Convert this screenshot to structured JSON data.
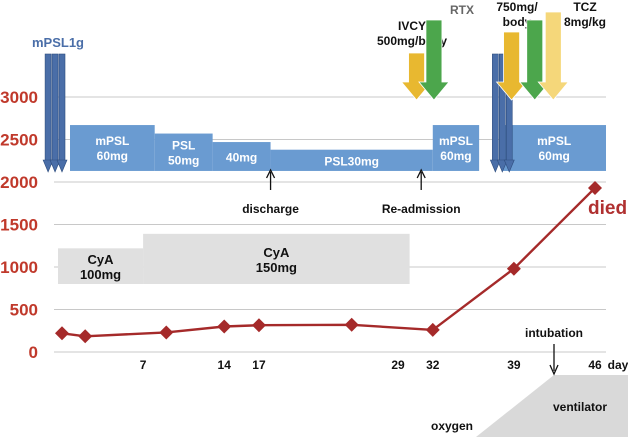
{
  "chart_data": {
    "type": "line",
    "y_axis": {
      "ticks": [
        "0",
        "500",
        "1000",
        "1500",
        "2000",
        "2500",
        "3000"
      ],
      "ylim": [
        0,
        3000
      ]
    },
    "x_axis": {
      "ticks": [
        "7",
        "14",
        "17",
        "29",
        "32",
        "39",
        "46"
      ],
      "unit": "day",
      "xlim": [
        0,
        48
      ]
    },
    "series": [
      {
        "x": [
          0,
          2,
          9,
          14,
          17,
          25,
          32,
          39,
          46
        ],
        "y": [
          220,
          185,
          230,
          300,
          315,
          320,
          260,
          980,
          1930
        ],
        "color": "#a52a2a"
      }
    ],
    "treatment_bars": [
      {
        "label": "mPSL\n60mg",
        "x0": 1,
        "x1": 8,
        "y_top": 2670
      },
      {
        "label": "PSL\n50mg",
        "x0": 8,
        "x1": 13,
        "y_top": 2570
      },
      {
        "label": "40mg",
        "x0": 13,
        "x1": 18,
        "y_top": 2470
      },
      {
        "label": "PSL30mg",
        "x0": 18,
        "x1": 32,
        "y_top": 2380
      },
      {
        "label": "mPSL\n60mg",
        "x0": 32,
        "x1": 36,
        "y_top": 2670
      },
      {
        "label": "mPSL\n60mg",
        "x0": 38,
        "x1": 47,
        "y_top": 2670
      }
    ],
    "cya_bars": [
      {
        "label": "CyA\n100mg",
        "x0": 0,
        "x1": 7,
        "y_bottom": 800,
        "y_top": 1220
      },
      {
        "label": "CyA\n150mg",
        "x0": 7,
        "x1": 30,
        "y_bottom": 800,
        "y_top": 1390
      }
    ],
    "pulse_arrows": {
      "label": "mPSL1g",
      "days": [
        -1.2,
        -0.6,
        0,
        37.4,
        38,
        38.6
      ],
      "color": "#4a6ea8"
    },
    "drug_arrows": [
      {
        "label": "IVCY\n500mg/body",
        "day": 30.6,
        "color": "#e8b830"
      },
      {
        "label": "RTX",
        "day": 32.1,
        "color": "#4ca64c"
      },
      {
        "label": "750mg/\nbody",
        "day": 38.8,
        "color": "#e8b830"
      },
      {
        "label": "",
        "day": 40.8,
        "color": "#4ca64c"
      },
      {
        "label": "TCZ\n8mg/kg",
        "day": 42.4,
        "color": "#f5d77a"
      }
    ],
    "event_markers": [
      {
        "label": "discharge",
        "day": 18
      },
      {
        "label": "Re-admission",
        "day": 31
      }
    ],
    "outcome_label": "died",
    "support": {
      "intubation_label": "intubation",
      "intubation_day": 41,
      "oxygen_label": "oxygen",
      "ventilator_label": "ventilator"
    }
  }
}
